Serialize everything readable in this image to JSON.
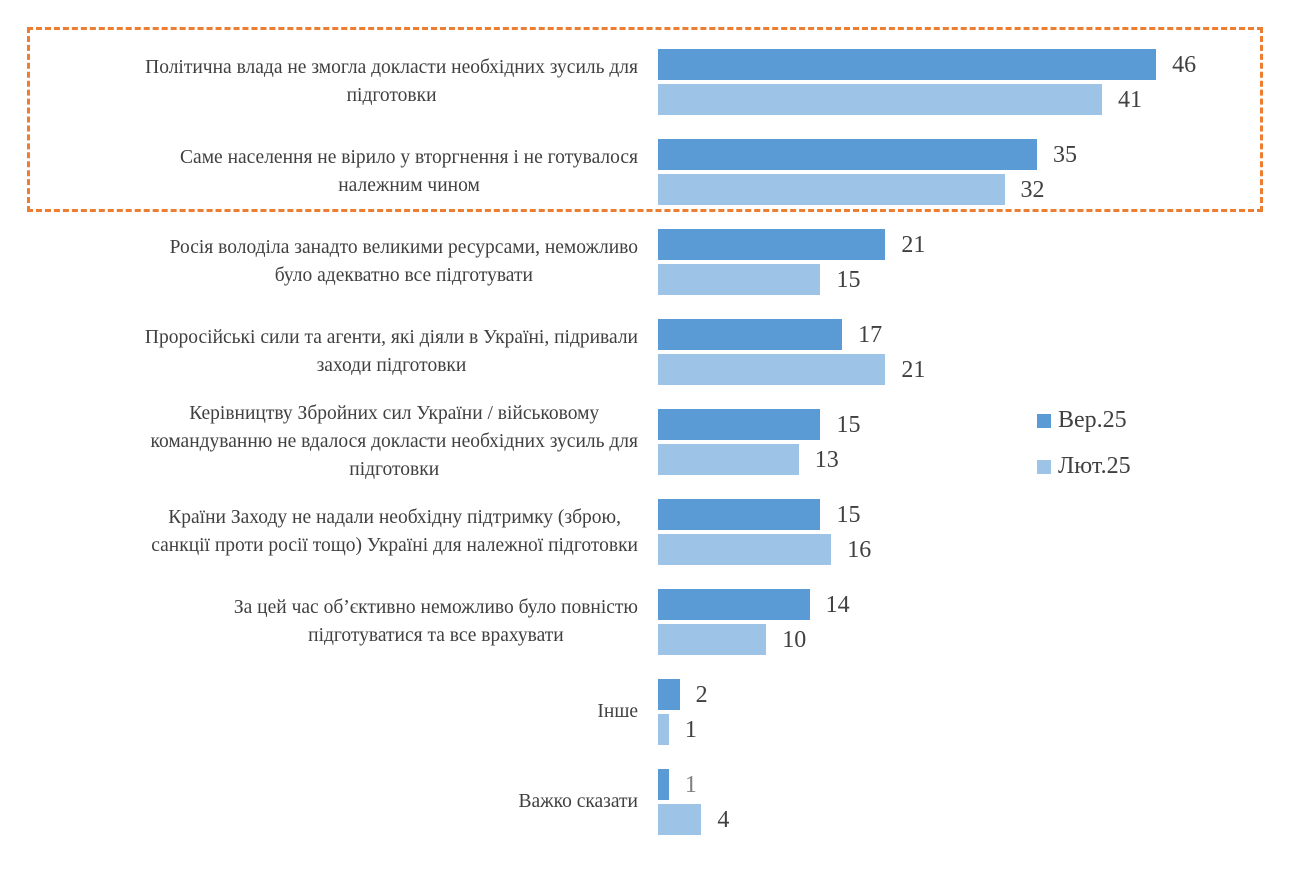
{
  "chart_data": {
    "type": "bar",
    "orientation": "horizontal",
    "categories": [
      [
        "Політична влада не змогла докласти необхідних зусиль для",
        "підготовки"
      ],
      [
        "Саме населення не вірило у вторгнення і не готувалося",
        "належним чином"
      ],
      [
        "Росія володіла занадто великими ресурсами, неможливо",
        "було адекватно все підготувати"
      ],
      [
        "Проросійські сили та агенти, які діяли в Україні, підривали",
        "заходи підготовки"
      ],
      [
        "Керівництву Збройних сил України / військовому",
        "командуванню не вдалося докласти необхідних зусиль для",
        "підготовки"
      ],
      [
        "Країни Заходу не надали необхідну підтримку (зброю,",
        "санкції проти росії тощо) Україні для належної підготовки"
      ],
      [
        "За цей час об’єктивно неможливо було повністю",
        "підготуватися та все врахувати"
      ],
      [
        "Інше"
      ],
      [
        "Важко сказати"
      ]
    ],
    "series": [
      {
        "name": "Вер.25",
        "color": "#5b9bd5",
        "values": [
          46,
          35,
          21,
          17,
          15,
          15,
          14,
          2,
          1
        ]
      },
      {
        "name": "Лют.25",
        "color": "#9dc3e6",
        "values": [
          41,
          32,
          15,
          21,
          13,
          16,
          10,
          1,
          4
        ]
      }
    ],
    "data_labels": true,
    "legend_position": "right",
    "grid": false,
    "highlight": {
      "categories": [
        0,
        1
      ],
      "color": "#ed7d31",
      "style": "dashed"
    }
  }
}
